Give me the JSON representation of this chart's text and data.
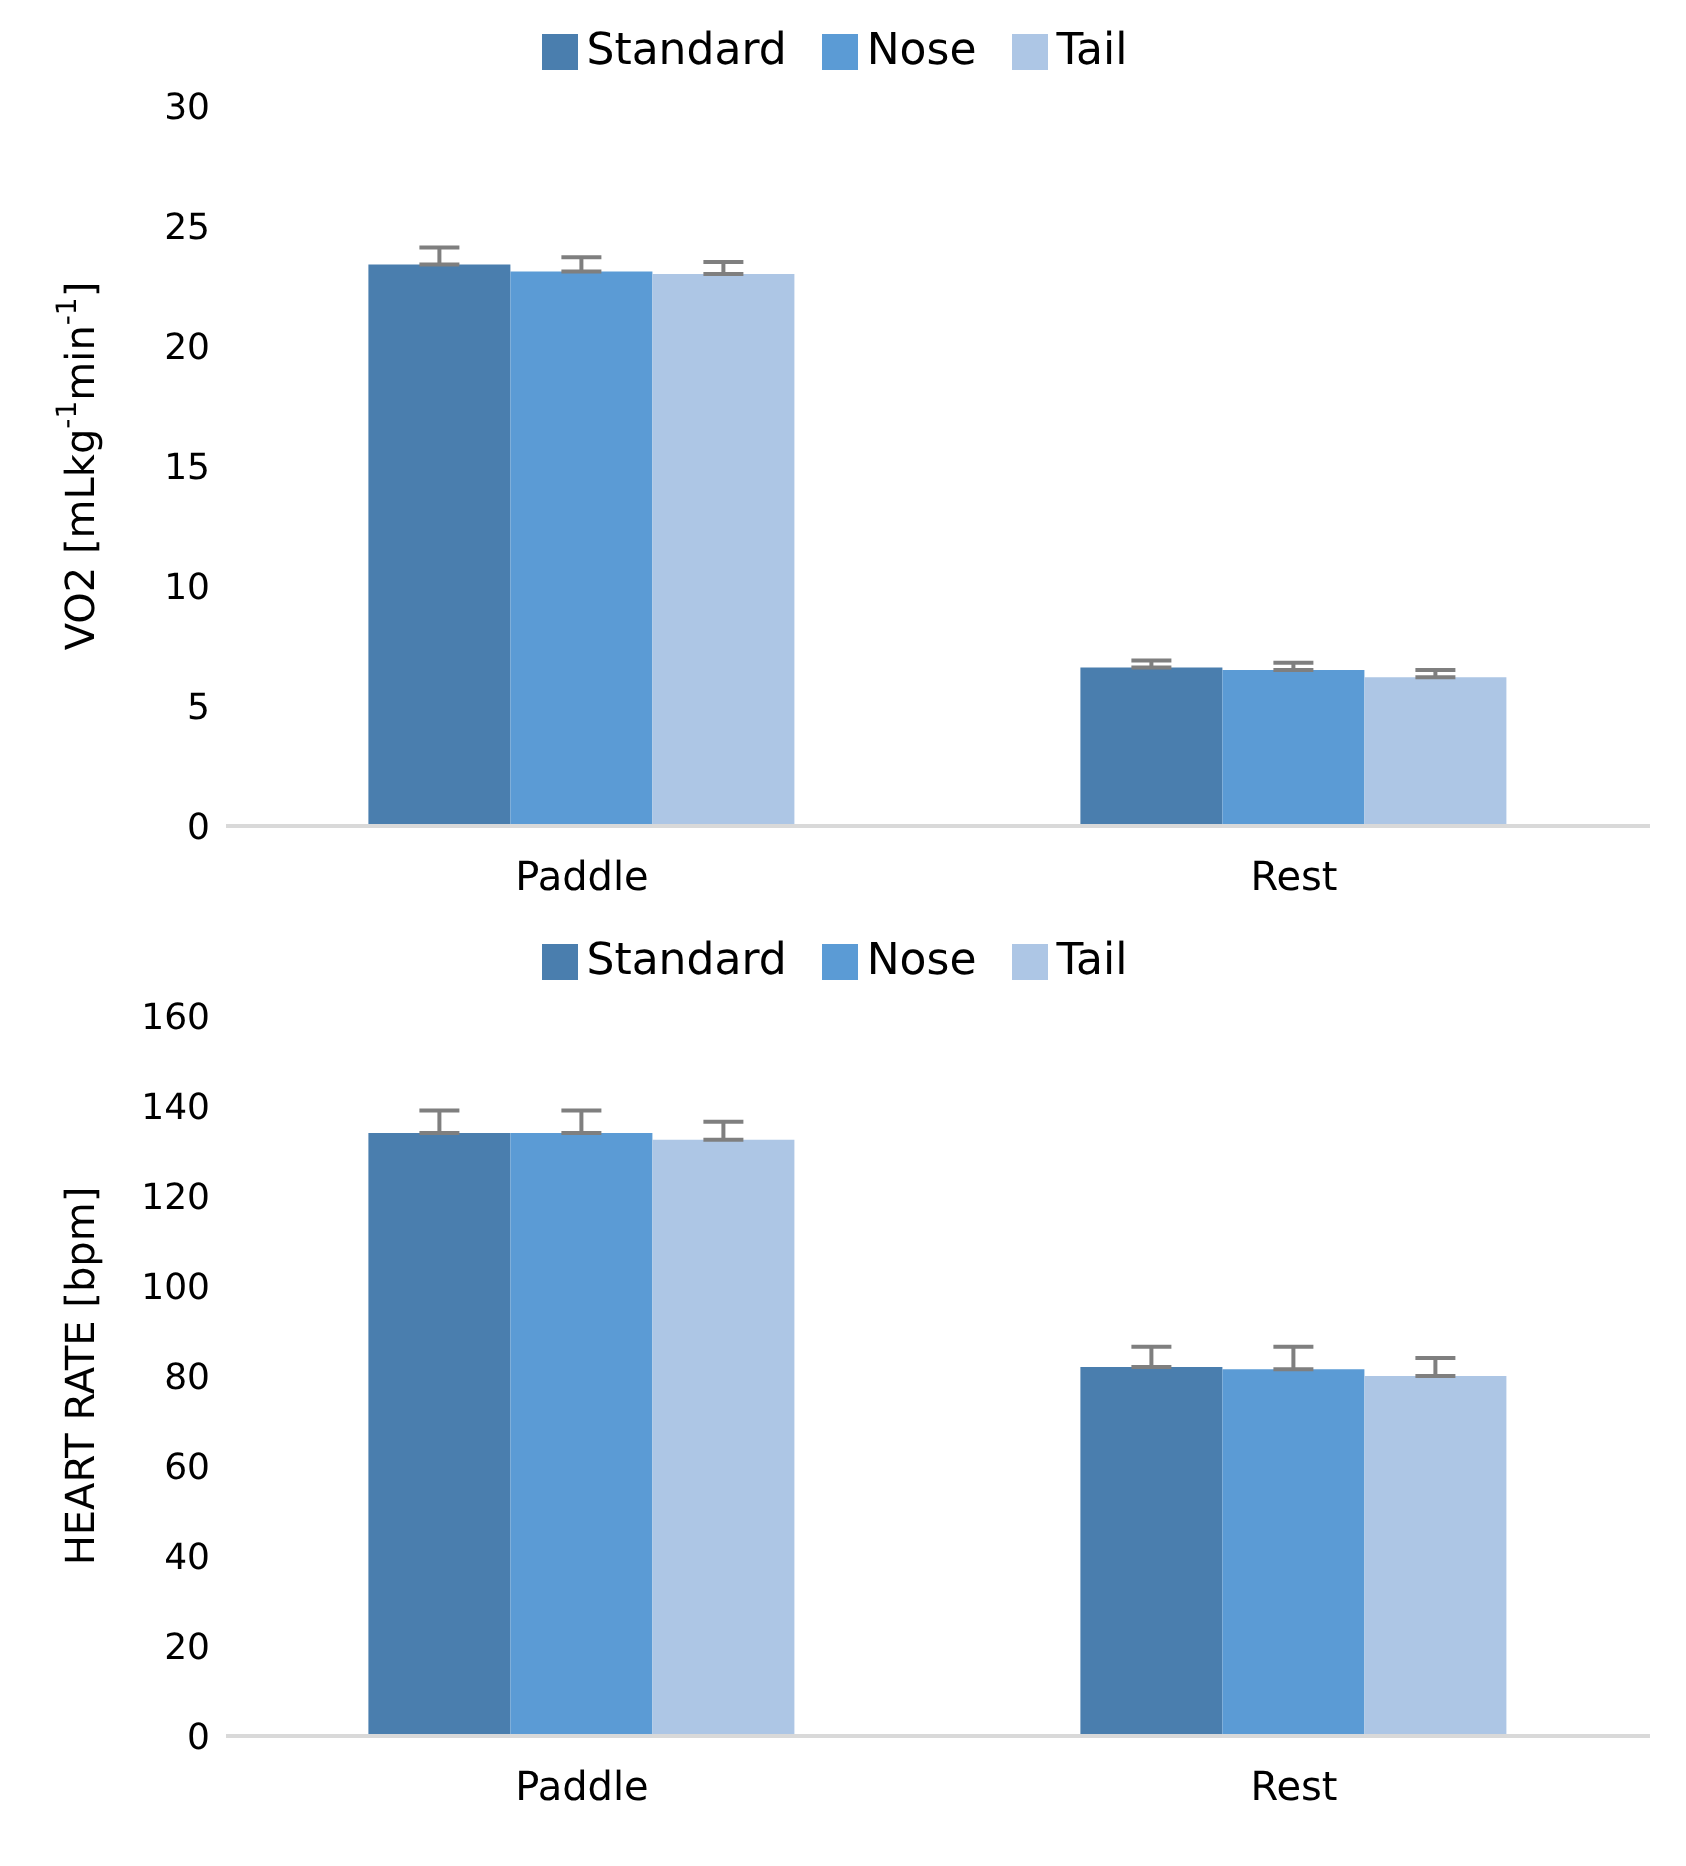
{
  "chart_data": [
    {
      "type": "bar",
      "categories": [
        "Paddle",
        "Rest"
      ],
      "ylabel": "VO2 [mLkg$^{-1}$min$^{-1}$]",
      "ylim": [
        0,
        30
      ],
      "yticks": [
        0,
        5,
        10,
        15,
        20,
        25,
        30
      ],
      "grid": false,
      "legend": "top",
      "series": [
        {
          "name": "Standard",
          "color": "#4a7eae",
          "values": [
            23.4,
            6.6
          ],
          "errors": [
            [
              23.4,
              24.1
            ],
            [
              6.6,
              6.9
            ]
          ]
        },
        {
          "name": "Nose",
          "color": "#5b9bd5",
          "values": [
            23.1,
            6.5
          ],
          "errors": [
            [
              23.1,
              23.7
            ],
            [
              6.5,
              6.8
            ]
          ]
        },
        {
          "name": "Tail",
          "color": "#adc6e5",
          "values": [
            23.0,
            6.2
          ],
          "errors": [
            [
              23.0,
              23.5
            ],
            [
              6.2,
              6.5
            ]
          ]
        }
      ]
    },
    {
      "type": "bar",
      "categories": [
        "Paddle",
        "Rest"
      ],
      "ylabel": "HEART RATE [bpm]",
      "ylim": [
        0,
        160
      ],
      "yticks": [
        0,
        20,
        40,
        60,
        80,
        100,
        120,
        140,
        160
      ],
      "grid": false,
      "legend": "top",
      "series": [
        {
          "name": "Standard",
          "color": "#4a7eae",
          "values": [
            134,
            82
          ],
          "errors": [
            [
              134,
              139
            ],
            [
              82,
              86.5
            ]
          ]
        },
        {
          "name": "Nose",
          "color": "#5b9bd5",
          "values": [
            134,
            81.5
          ],
          "errors": [
            [
              134,
              139
            ],
            [
              81.5,
              86.5
            ]
          ]
        },
        {
          "name": "Tail",
          "color": "#adc6e5",
          "values": [
            132.5,
            80
          ],
          "errors": [
            [
              132.5,
              136.5
            ],
            [
              80,
              84
            ]
          ]
        }
      ]
    }
  ]
}
